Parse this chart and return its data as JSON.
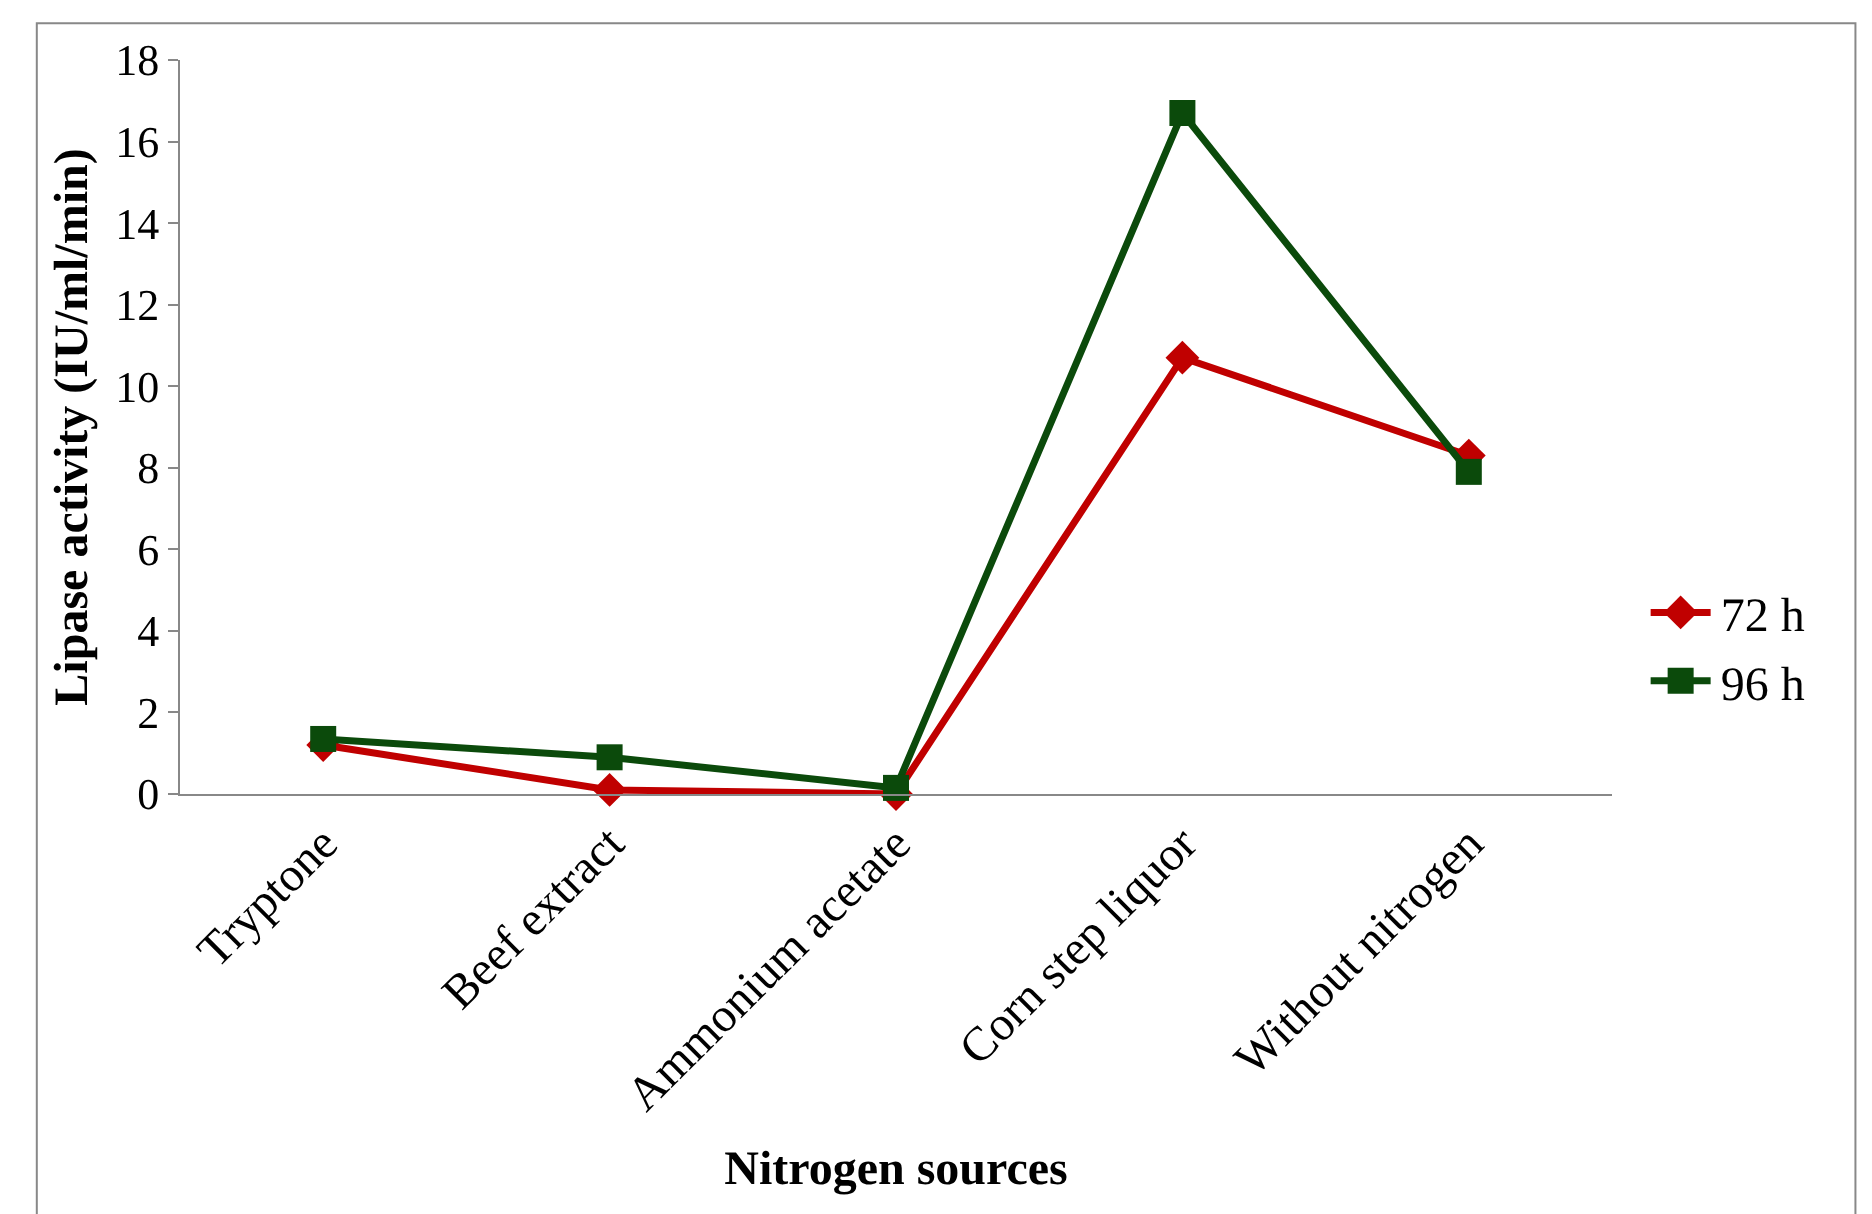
{
  "chart_data": {
    "type": "line",
    "xlabel": "Nitrogen sources",
    "ylabel": "Lipase activity (IU/ml/min)",
    "categories": [
      "Tryptone",
      "Beef extract",
      "Ammonium acetate",
      "Corn step liquor",
      "Without nitrogen"
    ],
    "series": [
      {
        "name": "72 h",
        "color": "#c00000",
        "marker": "diamond",
        "values": [
          1.2,
          0.1,
          0,
          10.7,
          8.3
        ]
      },
      {
        "name": "96 h",
        "color": "#0b4a0b",
        "marker": "square",
        "values": [
          1.35,
          0.9,
          0.15,
          16.7,
          7.9
        ]
      }
    ],
    "ylim": [
      0,
      18
    ],
    "yticks": [
      0,
      2,
      4,
      6,
      8,
      10,
      12,
      14,
      16,
      18
    ],
    "legend": "right",
    "line_style": "solid"
  }
}
